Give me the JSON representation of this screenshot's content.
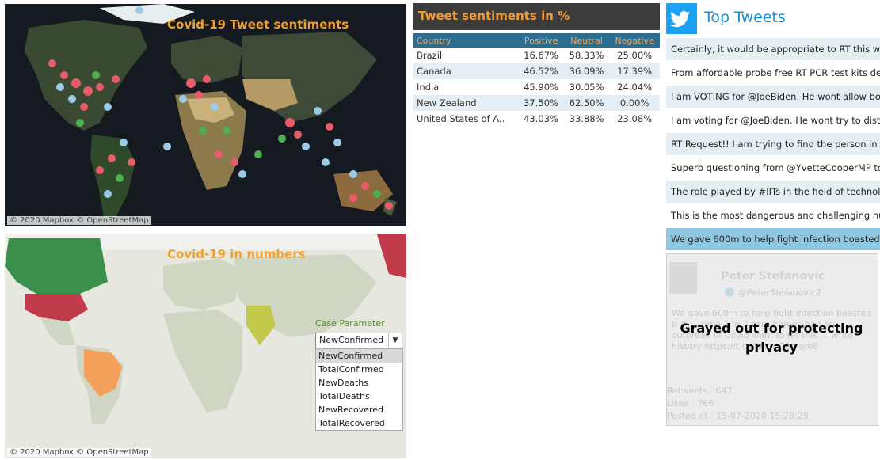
{
  "map1": {
    "title": "Covid-19 Tweet sentiments",
    "credit": "© 2020 Mapbox © OpenStreetMap"
  },
  "map2": {
    "title": "Covid-19 in numbers",
    "credit": "© 2020 Mapbox © OpenStreetMap",
    "param_label": "Case Parameter",
    "selected": "NewConfirmed",
    "options": [
      "NewConfirmed",
      "TotalConfirmed",
      "NewDeaths",
      "TotalDeaths",
      "NewRecovered",
      "TotalRecovered"
    ]
  },
  "sentiments": {
    "title": "Tweet sentiments in %",
    "columns": [
      "Country",
      "Positive",
      "Neutral",
      "Negative"
    ],
    "rows": [
      [
        "Brazil",
        "16.67%",
        "58.33%",
        "25.00%"
      ],
      [
        "Canada",
        "46.52%",
        "36.09%",
        "17.39%"
      ],
      [
        "India",
        "45.90%",
        "30.05%",
        "24.04%"
      ],
      [
        "New Zealand",
        "37.50%",
        "62.50%",
        "0.00%"
      ],
      [
        "United States of A..",
        "43.03%",
        "33.88%",
        "23.08%"
      ]
    ]
  },
  "top_tweets": {
    "title": "Top Tweets",
    "tweets": [
      "Certainly, it would be appropriate to RT this w",
      "From affordable probe free RT PCR test kits de",
      "I am VOTING for @JoeBiden.  He wont allow bo",
      "I am voting for @JoeBiden.  He wont try to dist",
      "RT Request!! I am trying to find the person in A",
      "Superb questioning from @YvetteCooperMP to",
      "The role played by #IITs in the field of technolo",
      "This is the most dangerous and challenging hu",
      "We gave 600m to help fight infection boasted b"
    ]
  },
  "tweet_card": {
    "name": "Peter Stefanovic",
    "handle": "@PeterStefanovic2",
    "body": "We gave 600m to help fight infection boasted b # ... time 1 in 3 care homes had an outbreak of Covid want to let this ... write history https://t.co/N1qqO0mqm8",
    "retweets": "Retweets : 647",
    "likes": "Likes : 766",
    "posted": "Posted at : 15-07-2020 15:28:29",
    "privacy_note": "Grayed out for protecting privacy"
  },
  "colors": {
    "accent_orange": "#f39c33",
    "table_header": "#2c6e8f",
    "twitter_blue": "#1da1f2",
    "positive_dot": "#4caf50",
    "negative_dot": "#e85c6a",
    "neutral_dot": "#9ccbe8"
  }
}
